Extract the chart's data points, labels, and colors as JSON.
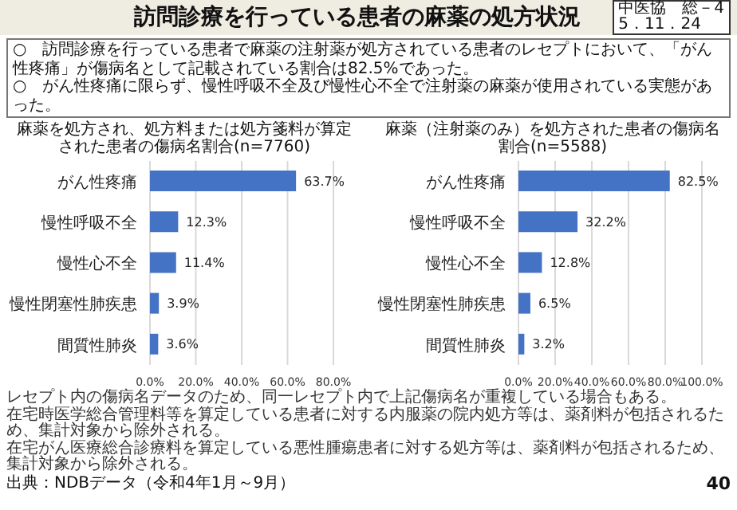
{
  "chart_data": [
    {
      "type": "other",
      "title": "訪問診療を行っている患者の麻薬の処方状況",
      "annotations": [
        "中医協　総－4",
        "5．11．24",
        "○　訪問診療を行っている患者で麻薬の注射薬が処方されている患者のレセプトにおいて、「がん性疼痛」が傷病名として記載されている割合は82.5%であった。",
        "○　がん性疼痛に限らず、慢性呼吸不全及び慢性心不全で注射薬の麻薬が使用されている実態があった。"
      ]
    },
    {
      "type": "bar",
      "orientation": "horizontal",
      "title": "麻薬を処方され、処方料または処方箋料が算定された患者の傷病名割合(n=7760)",
      "categories": [
        "がん性疼痛",
        "慢性呼吸不全",
        "慢性心不全",
        "慢性閉塞性肺疾患",
        "間質性肺炎"
      ],
      "values": [
        63.7,
        12.3,
        11.4,
        3.9,
        3.6
      ],
      "value_labels": [
        "63.7%",
        "12.3%",
        "11.4%",
        "3.9%",
        "3.6%"
      ],
      "color": "#4472c4",
      "xlim": [
        0,
        80
      ],
      "xticks": [
        {
          "value": 0,
          "label": "0.0%"
        },
        {
          "value": 20,
          "label": "20.0%"
        },
        {
          "value": 40,
          "label": "40.0%"
        },
        {
          "value": 60,
          "label": "60.0%"
        },
        {
          "value": 80,
          "label": "80.0%"
        }
      ],
      "grid": "x"
    },
    {
      "type": "bar",
      "orientation": "horizontal",
      "title": "麻薬（注射薬のみ）を処方された患者の傷病名割合(n=5588)",
      "categories": [
        "がん性疼痛",
        "慢性呼吸不全",
        "慢性心不全",
        "慢性閉塞性肺疾患",
        "間質性肺炎"
      ],
      "values": [
        82.5,
        32.2,
        12.8,
        6.5,
        3.2
      ],
      "value_labels": [
        "82.5%",
        "32.2%",
        "12.8%",
        "6.5%",
        "3.2%"
      ],
      "color": "#4472c4",
      "xlim": [
        0,
        100
      ],
      "xticks": [
        {
          "value": 0,
          "label": "0.0%"
        },
        {
          "value": 20,
          "label": "20.0%"
        },
        {
          "value": 40,
          "label": "40.0%"
        },
        {
          "value": 60,
          "label": "60.0%"
        },
        {
          "value": 80,
          "label": "80.0%"
        },
        {
          "value": 100,
          "label": "100.0%"
        }
      ],
      "grid": "x"
    },
    {
      "type": "other",
      "annotations": [
        "レセプト内の傷病名データのため、同一レセプト内で上記傷病名が重複している場合もある。",
        "在宅時医学総合管理料等を算定している患者に対する内服薬の院内処方等は、薬剤料が包括されるため、集計対象から除外される。",
        "在宅がん医療総合診療料を算定している悪性腫瘍患者に対する処方等は、薬剤料が包括されるため、集計対象から除外される。",
        "出典：NDBデータ（令和4年1月～9月）",
        "40"
      ]
    }
  ]
}
